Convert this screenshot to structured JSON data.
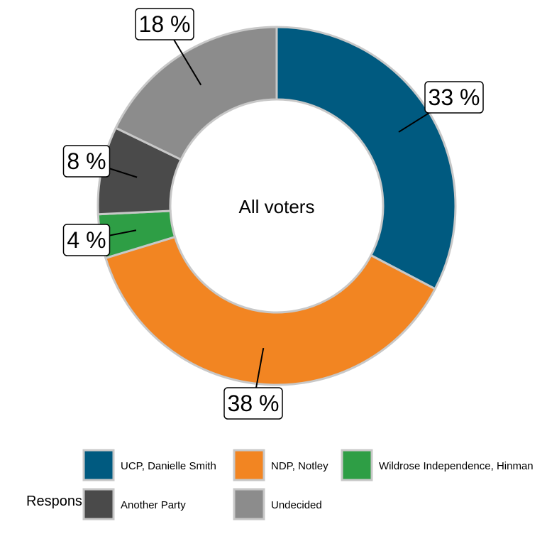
{
  "chart_data": {
    "type": "donut",
    "center_label": "All voters",
    "categories": [
      "UCP, Danielle Smith",
      "NDP, Notley",
      "Wildrose Independence, Hinman",
      "Another Party",
      "Undecided"
    ],
    "values": [
      33,
      38,
      4,
      8,
      18
    ],
    "value_labels": [
      "33 %",
      "38 %",
      "4 %",
      "8 %",
      "18 %"
    ],
    "colors": [
      "#005a80",
      "#f28522",
      "#2e9e45",
      "#4a4a4a",
      "#8c8c8c"
    ],
    "legend": {
      "title": "Response",
      "placement": "bottom",
      "entries": [
        "UCP, Danielle Smith",
        "NDP, Notley",
        "Wildrose Independence, Hinman",
        "Another Party",
        "Undecided"
      ]
    }
  }
}
